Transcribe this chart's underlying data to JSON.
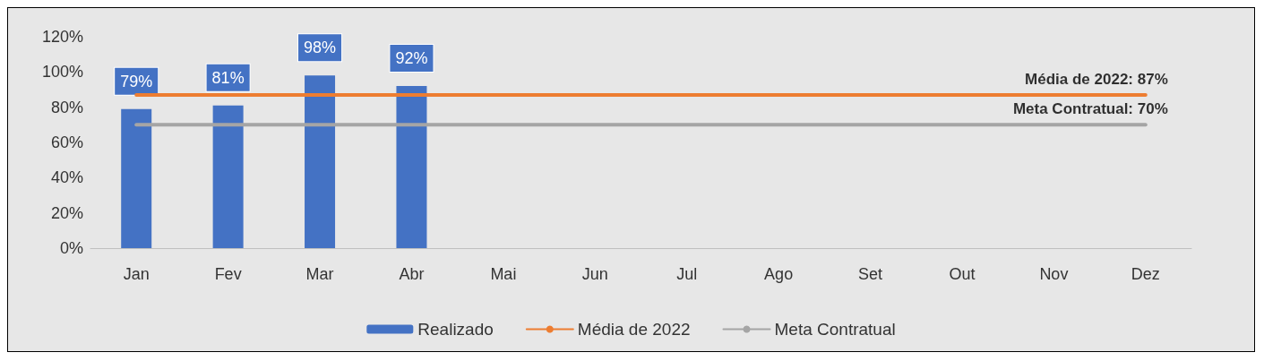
{
  "chart_data": {
    "type": "bar",
    "categories": [
      "Jan",
      "Fev",
      "Mar",
      "Abr",
      "Mai",
      "Jun",
      "Jul",
      "Ago",
      "Set",
      "Out",
      "Nov",
      "Dez"
    ],
    "series": [
      {
        "name": "Realizado",
        "color": "#4472c4",
        "values": [
          79,
          81,
          98,
          92,
          null,
          null,
          null,
          null,
          null,
          null,
          null,
          null
        ],
        "value_labels": [
          "79%",
          "81%",
          "98%",
          "92%",
          null,
          null,
          null,
          null,
          null,
          null,
          null,
          null
        ]
      },
      {
        "name": "Média de 2022",
        "type": "line",
        "color": "#ed7d31",
        "values": [
          87,
          87,
          87,
          87,
          87,
          87,
          87,
          87,
          87,
          87,
          87,
          87
        ]
      },
      {
        "name": "Meta Contratual",
        "type": "line",
        "color": "#a5a5a5",
        "values": [
          70,
          70,
          70,
          70,
          70,
          70,
          70,
          70,
          70,
          70,
          70,
          70
        ]
      }
    ],
    "annotations": [
      {
        "text": "Média de 2022: 87%",
        "x": "Dez",
        "y": 87
      },
      {
        "text": "Meta Contratual: 70%",
        "x": "Dez",
        "y": 70
      }
    ],
    "ylim": [
      0,
      120
    ],
    "yticks": [
      {
        "value": 0,
        "label": "0%"
      },
      {
        "value": 20,
        "label": "20%"
      },
      {
        "value": 40,
        "label": "40%"
      },
      {
        "value": 60,
        "label": "60%"
      },
      {
        "value": 80,
        "label": "80%"
      },
      {
        "value": 100,
        "label": "100%"
      },
      {
        "value": 120,
        "label": "120%"
      }
    ],
    "grid": false,
    "legend": "bottom",
    "marker": "none",
    "line_style": "solid"
  }
}
